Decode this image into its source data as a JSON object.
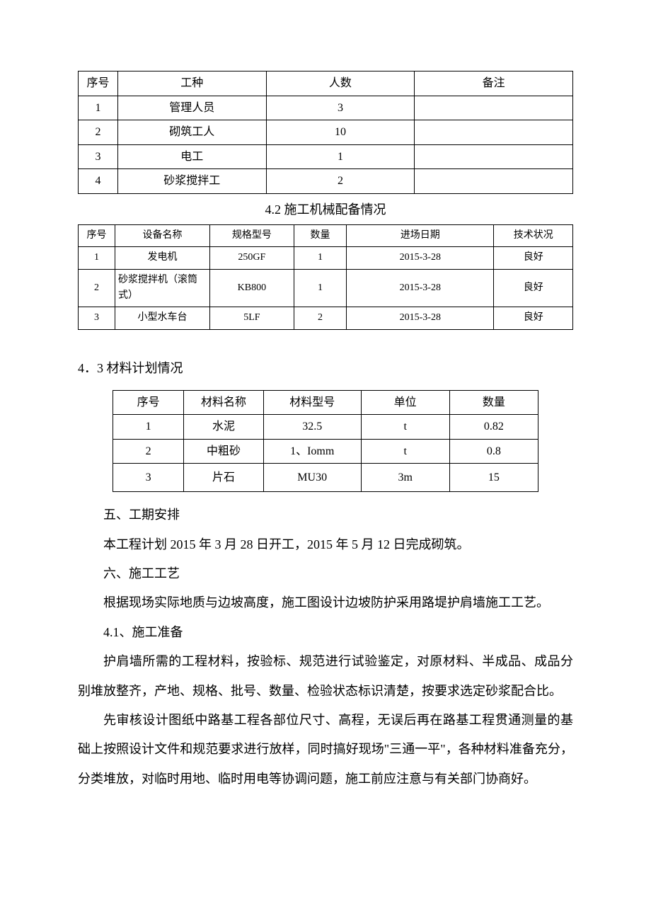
{
  "table1": {
    "headers": [
      "序号",
      "工种",
      "人数",
      "备注"
    ],
    "rows": [
      [
        "1",
        "管理人员",
        "3",
        ""
      ],
      [
        "2",
        "砌筑工人",
        "10",
        ""
      ],
      [
        "3",
        "电工",
        "1",
        ""
      ],
      [
        "4",
        "砂浆搅拌工",
        "2",
        ""
      ]
    ],
    "col_widths_pct": [
      8,
      30,
      30,
      32
    ],
    "border_color": "#000000",
    "font_size": 16
  },
  "heading_42": "4.2 施工机械配备情况",
  "table2": {
    "headers": [
      "序号",
      "设备名称",
      "规格型号",
      "数量",
      "进场日期",
      "技术状况"
    ],
    "rows": [
      [
        "1",
        "发电机",
        "250GF",
        "1",
        "2015-3-28",
        "良好"
      ],
      [
        "2",
        "砂浆搅拌机（滚筒式）",
        "KB800",
        "1",
        "2015-3-28",
        "良好"
      ],
      [
        "3",
        "小型水车台",
        "5LF",
        "2",
        "2015-3-28",
        "良好"
      ]
    ],
    "col_widths_pct": [
      7,
      18,
      16,
      10,
      28,
      15
    ],
    "border_color": "#000000",
    "font_size": 14
  },
  "section_43_title": "4．3 材料计划情况",
  "table3": {
    "headers": [
      "序号",
      "材料名称",
      "材料型号",
      "单位",
      "数量"
    ],
    "rows": [
      [
        "1",
        "水泥",
        "32.5",
        "t",
        "0.82"
      ],
      [
        "2",
        "中粗砂",
        "1、Iomm",
        "t",
        "0.8"
      ],
      [
        "3",
        "片石",
        "MU30",
        "3m",
        "15"
      ]
    ],
    "col_widths_pct": [
      16,
      18,
      22,
      20,
      20
    ],
    "border_color": "#000000",
    "font_size": 16
  },
  "paragraphs": {
    "p1": "五、工期安排",
    "p2": "本工程计划 2015 年 3 月 28 日开工，2015 年 5 月 12 日完成砌筑。",
    "p3": "六、施工工艺",
    "p4": "根据现场实际地质与边坡高度，施工图设计边坡防护采用路堤护肩墙施工工艺。",
    "p5": "4.1、施工准备",
    "p6": "护肩墙所需的工程材料，按验标、规范进行试验鉴定，对原材料、半成品、成品分别堆放整齐，产地、规格、批号、数量、检验状态标识清楚，按要求选定砂浆配合比。",
    "p7": "先审核设计图纸中路基工程各部位尺寸、高程，无误后再在路基工程贯通测量的基础上按照设计文件和规范要求进行放样，同时搞好现场\"三通一平\"，各种材料准备充分，分类堆放，对临时用地、临时用电等协调问题，施工前应注意与有关部门协商好。"
  },
  "typography": {
    "body_font_family": "SimSun",
    "body_font_size_pt": 14,
    "heading_font_size_pt": 14,
    "line_height": 2.3,
    "text_indent_em": 2,
    "text_color": "#000000",
    "background_color": "#ffffff"
  }
}
